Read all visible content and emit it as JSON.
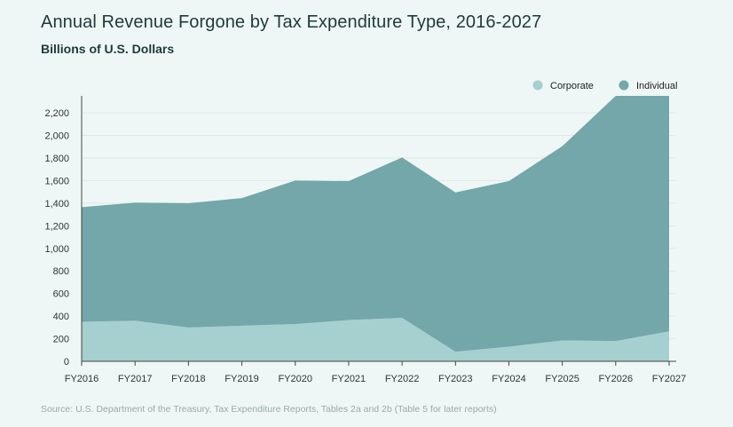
{
  "header": {
    "title": "Annual Revenue Forgone by Tax Expenditure Type, 2016-2027",
    "subtitle": "Billions of U.S. Dollars"
  },
  "footer": {
    "source": "Source: U.S. Department of the Treasury, Tax Expenditure Reports, Tables 2a and 2b (Table 5 for later reports)"
  },
  "chart_data": {
    "type": "area",
    "stacked": true,
    "title": "Annual Revenue Forgone by Tax Expenditure Type, 2016-2027",
    "subtitle": "Billions of U.S. Dollars",
    "xlabel": "",
    "ylabel": "",
    "x": [
      "FY2016",
      "FY2017",
      "FY2018",
      "FY2019",
      "FY2020",
      "FY2021",
      "FY2022",
      "FY2023",
      "FY2024",
      "FY2025",
      "FY2026",
      "FY2027"
    ],
    "ylim": [
      0,
      2350
    ],
    "yticks": [
      0,
      200,
      400,
      600,
      800,
      1000,
      1200,
      1400,
      1600,
      1800,
      2000,
      2200
    ],
    "ytick_labels": [
      "0",
      "200",
      "400",
      "600",
      "800",
      "1,000",
      "1,200",
      "1,400",
      "1,600",
      "1,800",
      "2,000",
      "2,200"
    ],
    "grid": true,
    "legend_position": "top-right",
    "series": [
      {
        "name": "Corporate",
        "color": "#a6cfcf",
        "values": [
          350,
          360,
          300,
          315,
          330,
          365,
          385,
          85,
          130,
          185,
          180,
          265
        ]
      },
      {
        "name": "Individual",
        "color": "#73a7a9",
        "values": [
          1015,
          1045,
          1100,
          1130,
          1270,
          1230,
          1420,
          1410,
          1465,
          1720,
          2170,
          2085
        ]
      }
    ]
  }
}
